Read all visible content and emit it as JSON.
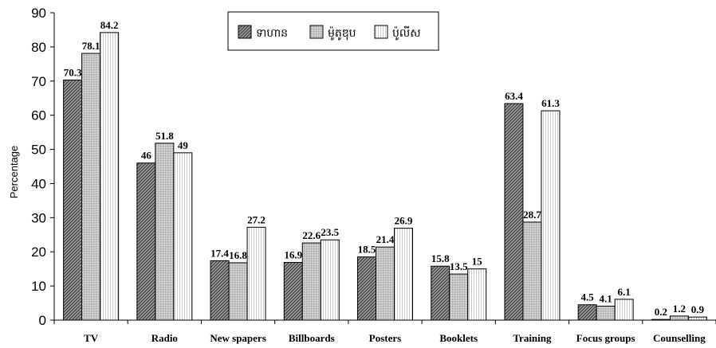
{
  "chart_data": {
    "type": "bar",
    "title": "",
    "xlabel": "",
    "ylabel": "Percentage",
    "ylim": [
      0,
      90
    ],
    "yticks": [
      0,
      10,
      20,
      30,
      40,
      50,
      60,
      70,
      80,
      90
    ],
    "grid": false,
    "legend_position": "top-center",
    "categories": [
      "TV",
      "Radio",
      "New spapers",
      "Billboards",
      "Posters",
      "Booklets",
      "Training",
      "Focus groups",
      "Counselling"
    ],
    "series": [
      {
        "name": "ទាហាន",
        "values": [
          70.3,
          46,
          17.4,
          16.9,
          18.5,
          15.8,
          63.4,
          4.5,
          0.2
        ],
        "labels": [
          "70.3",
          "46",
          "17.4",
          "16.9",
          "18.5",
          "15.8",
          "63.4",
          "4.5",
          "0.2"
        ],
        "pattern": "diagonal-dense",
        "color": "#8c8c8c"
      },
      {
        "name": "ម៉ូតូឌុប",
        "values": [
          78.1,
          51.8,
          16.8,
          22.6,
          21.4,
          13.5,
          28.7,
          4.1,
          1.2
        ],
        "labels": [
          "78.1",
          "51.8",
          "16.8",
          "22.6",
          "21.4",
          "13.5",
          "28.7",
          "4.1",
          "1.2"
        ],
        "pattern": "gray-fine",
        "color": "#c8c8c8"
      },
      {
        "name": "ប៉ូលីស",
        "values": [
          84.2,
          49,
          27.2,
          23.5,
          26.9,
          15,
          61.3,
          6.1,
          0.9
        ],
        "labels": [
          "84.2",
          "49",
          "27.2",
          "23.5",
          "26.9",
          "15",
          "61.3",
          "6.1",
          "0.9"
        ],
        "pattern": "vertical-light",
        "color": "#eeeeee"
      }
    ]
  }
}
